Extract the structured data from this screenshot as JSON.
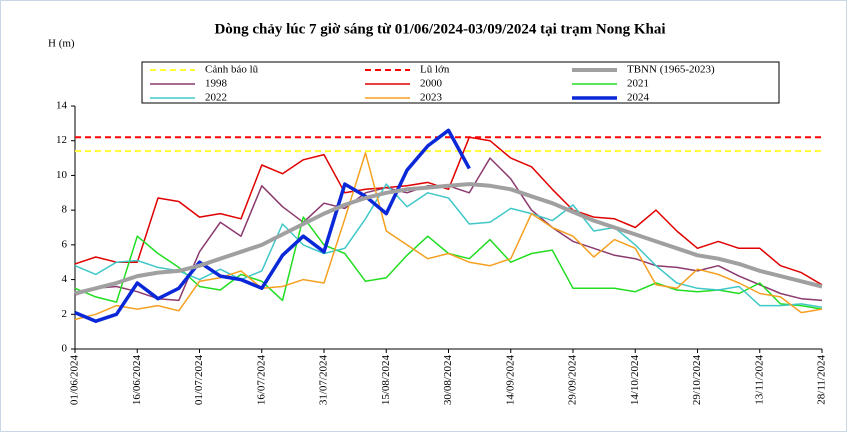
{
  "chart_data": {
    "type": "line",
    "title": "Dòng chảy lúc 7 giờ sáng từ 01/06/2024-03/09/2024 tại trạm Nong Khai",
    "y_label": "H (m)",
    "x": [
      0,
      5,
      10,
      15,
      20,
      25,
      30,
      35,
      40,
      45,
      50,
      55,
      60,
      65,
      70,
      75,
      80,
      85,
      90,
      95,
      100,
      105,
      110,
      115,
      120,
      125,
      130,
      135,
      140,
      145,
      150,
      155,
      160,
      165,
      170,
      175,
      180
    ],
    "xlim": [
      0,
      180
    ],
    "xticks": [
      {
        "value": 0,
        "label": "01/06/2024"
      },
      {
        "value": 15,
        "label": "16/06/2024"
      },
      {
        "value": 30,
        "label": "01/07/2024"
      },
      {
        "value": 45,
        "label": "16/07/2024"
      },
      {
        "value": 60,
        "label": "31/07/2024"
      },
      {
        "value": 75,
        "label": "15/08/2024"
      },
      {
        "value": 90,
        "label": "30/08/2024"
      },
      {
        "value": 105,
        "label": "14/09/2024"
      },
      {
        "value": 120,
        "label": "29/09/2024"
      },
      {
        "value": 135,
        "label": "14/10/2024"
      },
      {
        "value": 150,
        "label": "29/10/2024"
      },
      {
        "value": 165,
        "label": "13/11/2024"
      },
      {
        "value": 180,
        "label": "28/11/2024"
      }
    ],
    "ylim": [
      0,
      14
    ],
    "yticks": [
      0,
      2,
      4,
      6,
      8,
      10,
      12,
      14
    ],
    "series": [
      {
        "name": "Cảnh báo lũ",
        "color": "#ffff33",
        "dash": true,
        "line_width": 2,
        "values": [
          11.4,
          11.4,
          11.4,
          11.4,
          11.4,
          11.4,
          11.4,
          11.4,
          11.4,
          11.4,
          11.4,
          11.4,
          11.4,
          11.4,
          11.4,
          11.4,
          11.4,
          11.4,
          11.4,
          11.4,
          11.4,
          11.4,
          11.4,
          11.4,
          11.4,
          11.4,
          11.4,
          11.4,
          11.4,
          11.4,
          11.4,
          11.4,
          11.4,
          11.4,
          11.4,
          11.4,
          11.4
        ]
      },
      {
        "name": "Lũ lớn",
        "color": "#ff0000",
        "dash": true,
        "line_width": 2,
        "values": [
          12.2,
          12.2,
          12.2,
          12.2,
          12.2,
          12.2,
          12.2,
          12.2,
          12.2,
          12.2,
          12.2,
          12.2,
          12.2,
          12.2,
          12.2,
          12.2,
          12.2,
          12.2,
          12.2,
          12.2,
          12.2,
          12.2,
          12.2,
          12.2,
          12.2,
          12.2,
          12.2,
          12.2,
          12.2,
          12.2,
          12.2,
          12.2,
          12.2,
          12.2,
          12.2,
          12.2,
          12.2
        ]
      },
      {
        "name": "TBNN (1965-2023)",
        "color": "#a0a0a0",
        "dash": false,
        "line_width": 4,
        "values": [
          3.2,
          3.5,
          3.8,
          4.2,
          4.4,
          4.5,
          4.8,
          5.2,
          5.6,
          6.0,
          6.6,
          7.2,
          7.8,
          8.3,
          8.7,
          9.0,
          9.2,
          9.3,
          9.4,
          9.5,
          9.4,
          9.2,
          8.8,
          8.4,
          7.9,
          7.4,
          7.0,
          6.6,
          6.2,
          5.8,
          5.4,
          5.2,
          4.9,
          4.5,
          4.2,
          3.9,
          3.6
        ]
      },
      {
        "name": "1998",
        "color": "#8b3a6e",
        "dash": false,
        "line_width": 1.5,
        "values": [
          3.1,
          3.5,
          3.6,
          3.3,
          2.9,
          2.8,
          5.6,
          7.3,
          6.5,
          9.4,
          8.2,
          7.3,
          8.4,
          8.1,
          9.0,
          9.3,
          9.0,
          9.4,
          9.4,
          9.0,
          11.0,
          9.8,
          8.0,
          7.0,
          6.2,
          5.8,
          5.4,
          5.2,
          4.8,
          4.7,
          4.5,
          4.8,
          4.2,
          3.7,
          3.2,
          2.9,
          2.8
        ]
      },
      {
        "name": "2000",
        "color": "#e00000",
        "dash": false,
        "line_width": 1.5,
        "values": [
          4.9,
          5.3,
          5.0,
          5.0,
          8.7,
          8.5,
          7.6,
          7.8,
          7.5,
          10.6,
          10.1,
          10.9,
          11.2,
          9.0,
          9.2,
          9.3,
          9.4,
          9.6,
          9.2,
          12.2,
          12.0,
          11.0,
          10.5,
          9.2,
          8.0,
          7.6,
          7.5,
          7.0,
          8.0,
          6.8,
          5.8,
          6.2,
          5.8,
          5.8,
          4.8,
          4.4,
          3.7
        ]
      },
      {
        "name": "2021",
        "color": "#22dd22",
        "dash": false,
        "line_width": 1.5,
        "values": [
          3.5,
          3.0,
          2.7,
          6.5,
          5.5,
          4.7,
          3.6,
          3.4,
          4.3,
          3.9,
          2.8,
          7.6,
          6.0,
          5.5,
          3.9,
          4.1,
          5.4,
          6.5,
          5.5,
          5.2,
          6.3,
          5.0,
          5.5,
          5.7,
          3.5,
          3.5,
          3.5,
          3.3,
          3.8,
          3.4,
          3.3,
          3.4,
          3.2,
          3.8,
          2.6,
          2.5,
          2.3
        ]
      },
      {
        "name": "2022",
        "color": "#40c8c8",
        "dash": false,
        "line_width": 1.5,
        "values": [
          4.8,
          4.3,
          5.0,
          5.1,
          4.7,
          4.5,
          4.0,
          4.6,
          4.0,
          4.5,
          7.2,
          6.0,
          5.5,
          5.8,
          7.5,
          9.5,
          8.2,
          9.0,
          8.7,
          7.2,
          7.3,
          8.1,
          7.8,
          7.4,
          8.3,
          6.8,
          7.0,
          6.0,
          4.8,
          3.8,
          3.5,
          3.4,
          3.6,
          2.5,
          2.5,
          2.6,
          2.4
        ]
      },
      {
        "name": "2023",
        "color": "#f5a020",
        "dash": false,
        "line_width": 1.5,
        "values": [
          1.7,
          2.0,
          2.5,
          2.3,
          2.5,
          2.2,
          3.9,
          4.1,
          4.5,
          3.5,
          3.6,
          4.0,
          3.8,
          7.5,
          11.3,
          6.8,
          6.0,
          5.2,
          5.5,
          5.0,
          4.8,
          5.2,
          7.8,
          7.0,
          6.5,
          5.3,
          6.3,
          5.8,
          3.7,
          3.5,
          4.6,
          4.3,
          3.8,
          3.2,
          3.0,
          2.1,
          2.3
        ]
      },
      {
        "name": "2024",
        "color": "#0a28d8",
        "dash": false,
        "line_width": 3.5,
        "values": [
          2.1,
          1.6,
          2.0,
          3.8,
          2.9,
          3.5,
          5.0,
          4.2,
          4.0,
          3.5,
          5.4,
          6.5,
          5.6,
          9.5,
          8.8,
          7.8,
          10.3,
          11.7,
          12.6,
          10.4,
          null,
          null,
          null,
          null,
          null,
          null,
          null,
          null,
          null,
          null,
          null,
          null,
          null,
          null,
          null,
          null,
          null
        ]
      }
    ]
  }
}
